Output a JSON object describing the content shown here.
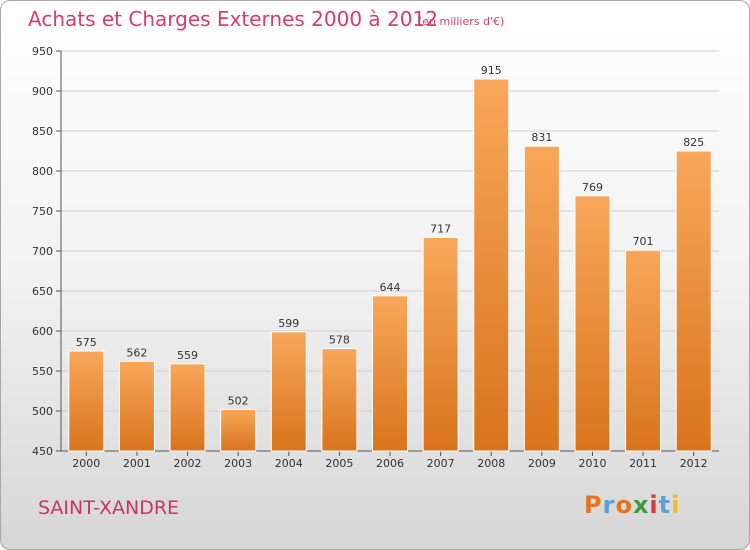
{
  "header": {
    "title": "Achats et Charges Externes 2000 à 2012",
    "subtitle": "(en milliers d'€)"
  },
  "footer": {
    "city": "SAINT-XANDRE",
    "logo": "Proxiti"
  },
  "colors": {
    "accent": "#d0406a",
    "bar_top": "#f8a75a",
    "bar_bottom": "#d9741c"
  },
  "chart_data": {
    "type": "bar",
    "title": "Achats et Charges Externes 2000 à 2012",
    "subtitle": "(en milliers d'€)",
    "categories": [
      "2000",
      "2001",
      "2002",
      "2003",
      "2004",
      "2005",
      "2006",
      "2007",
      "2008",
      "2009",
      "2010",
      "2011",
      "2012"
    ],
    "values": [
      575,
      562,
      559,
      502,
      599,
      578,
      644,
      717,
      915,
      831,
      769,
      701,
      825
    ],
    "ylim": [
      450,
      950
    ],
    "yticks": [
      450,
      500,
      550,
      600,
      650,
      700,
      750,
      800,
      850,
      900,
      950
    ],
    "grid": true,
    "data_labels": true
  }
}
